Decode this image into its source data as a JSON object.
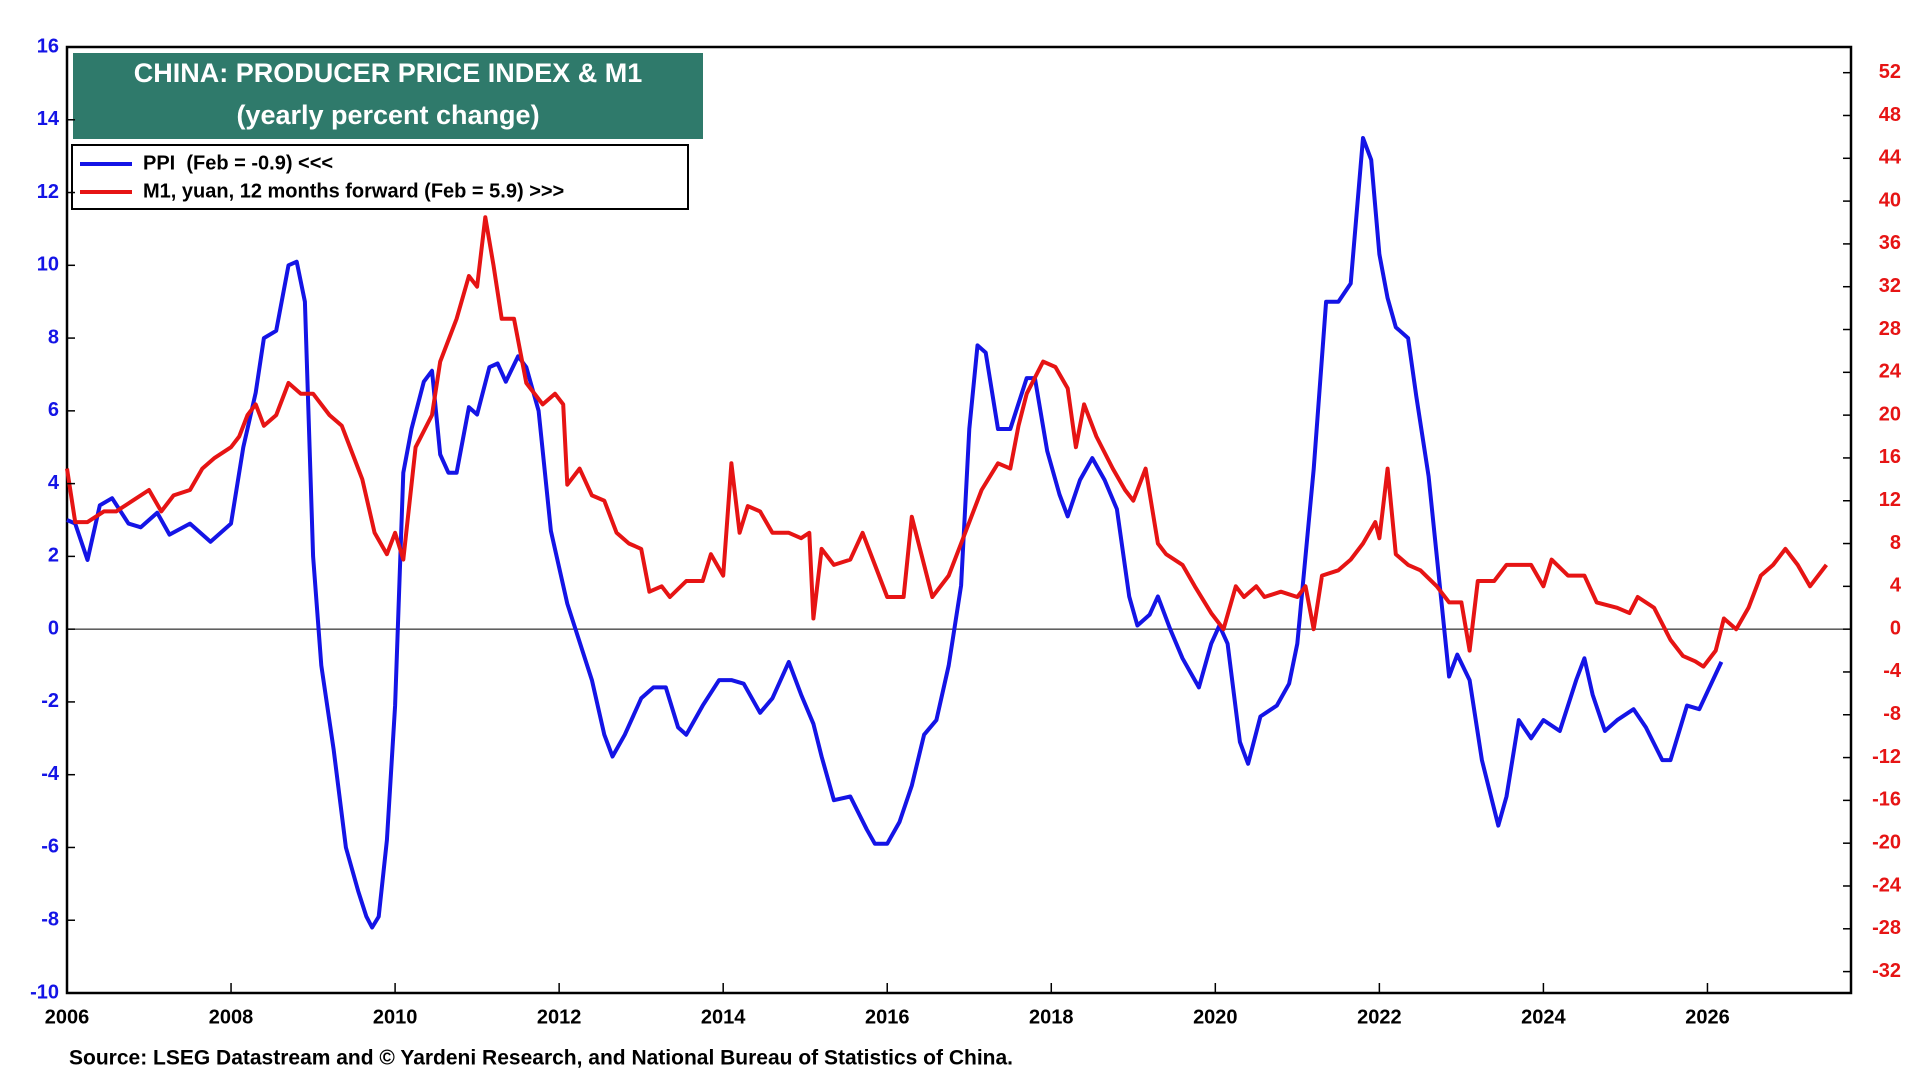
{
  "chart_data": {
    "type": "line",
    "title": "CHINA: PRODUCER PRICE INDEX & M1",
    "subtitle": "(yearly percent change)",
    "source": "Source: LSEG Datastream and © Yardeni Research, and National Bureau of Statistics of China.",
    "xlim": [
      2006,
      2027.75
    ],
    "xticks": [
      2006,
      2008,
      2010,
      2012,
      2014,
      2016,
      2018,
      2020,
      2022,
      2024,
      2026
    ],
    "ylim": [
      -10,
      16
    ],
    "yticks": [
      -10,
      -8,
      -6,
      -4,
      -2,
      0,
      2,
      4,
      6,
      8,
      10,
      12,
      14,
      16
    ],
    "y2lim": [
      -34,
      54.4
    ],
    "y2ticks": [
      -32,
      -28,
      -24,
      -20,
      -16,
      -12,
      -8,
      -4,
      0,
      4,
      8,
      12,
      16,
      20,
      24,
      28,
      32,
      36,
      40,
      44,
      48,
      52
    ],
    "series": [
      {
        "name": "PPI  (Feb = -0.9) <<<",
        "color": "#1414e6",
        "axis": "y",
        "x": [
          2006.0,
          2006.1,
          2006.25,
          2006.4,
          2006.55,
          2006.75,
          2006.9,
          2007.1,
          2007.25,
          2007.5,
          2007.75,
          2008.0,
          2008.15,
          2008.3,
          2008.4,
          2008.55,
          2008.7,
          2008.8,
          2008.9,
          2009.0,
          2009.1,
          2009.25,
          2009.4,
          2009.55,
          2009.65,
          2009.72,
          2009.8,
          2009.9,
          2010.0,
          2010.1,
          2010.2,
          2010.35,
          2010.45,
          2010.55,
          2010.65,
          2010.75,
          2010.9,
          2011.0,
          2011.15,
          2011.25,
          2011.35,
          2011.5,
          2011.6,
          2011.75,
          2011.9,
          2012.0,
          2012.1,
          2012.2,
          2012.4,
          2012.55,
          2012.65,
          2012.8,
          2013.0,
          2013.15,
          2013.3,
          2013.45,
          2013.55,
          2013.75,
          2013.95,
          2014.1,
          2014.25,
          2014.45,
          2014.6,
          2014.8,
          2014.95,
          2015.1,
          2015.2,
          2015.35,
          2015.55,
          2015.75,
          2015.85,
          2016.0,
          2016.15,
          2016.3,
          2016.45,
          2016.6,
          2016.75,
          2016.9,
          2017.0,
          2017.1,
          2017.2,
          2017.35,
          2017.5,
          2017.7,
          2017.8,
          2017.95,
          2018.1,
          2018.2,
          2018.35,
          2018.5,
          2018.65,
          2018.8,
          2018.95,
          2019.05,
          2019.2,
          2019.3,
          2019.45,
          2019.6,
          2019.8,
          2019.95,
          2020.05,
          2020.15,
          2020.3,
          2020.4,
          2020.55,
          2020.75,
          2020.9,
          2021.0,
          2021.2,
          2021.35,
          2021.5,
          2021.65,
          2021.8,
          2021.9,
          2022.0,
          2022.1,
          2022.2,
          2022.35,
          2022.45,
          2022.6,
          2022.75,
          2022.85,
          2022.95,
          2023.1,
          2023.25,
          2023.45,
          2023.55,
          2023.7,
          2023.85,
          2024.0,
          2024.2,
          2024.4,
          2024.5,
          2024.6,
          2024.75,
          2024.9,
          2025.1,
          2025.25,
          2025.45,
          2025.55,
          2025.75,
          2025.9,
          2026.17
        ],
        "values": [
          3.0,
          2.9,
          1.9,
          3.4,
          3.6,
          2.9,
          2.8,
          3.2,
          2.6,
          2.9,
          2.4,
          2.9,
          5.0,
          6.5,
          8.0,
          8.2,
          10.0,
          10.1,
          9.0,
          2.0,
          -1.0,
          -3.3,
          -6.0,
          -7.2,
          -7.9,
          -8.2,
          -7.9,
          -5.8,
          -2.1,
          4.3,
          5.5,
          6.8,
          7.1,
          4.8,
          4.3,
          4.3,
          6.1,
          5.9,
          7.2,
          7.3,
          6.8,
          7.5,
          7.2,
          6.0,
          2.7,
          1.7,
          0.7,
          0.0,
          -1.4,
          -2.9,
          -3.5,
          -2.9,
          -1.9,
          -1.6,
          -1.6,
          -2.7,
          -2.9,
          -2.1,
          -1.4,
          -1.4,
          -1.5,
          -2.3,
          -1.9,
          -0.9,
          -1.8,
          -2.6,
          -3.5,
          -4.7,
          -4.6,
          -5.5,
          -5.9,
          -5.9,
          -5.3,
          -4.3,
          -2.9,
          -2.5,
          -1.0,
          1.2,
          5.5,
          7.8,
          7.6,
          5.5,
          5.5,
          6.9,
          6.9,
          4.9,
          3.7,
          3.1,
          4.1,
          4.7,
          4.1,
          3.3,
          0.9,
          0.1,
          0.4,
          0.9,
          0.0,
          -0.8,
          -1.6,
          -0.4,
          0.1,
          -0.4,
          -3.1,
          -3.7,
          -2.4,
          -2.1,
          -1.5,
          -0.4,
          4.4,
          9.0,
          9.0,
          9.5,
          13.5,
          12.9,
          10.3,
          9.1,
          8.3,
          8.0,
          6.4,
          4.2,
          0.9,
          -1.3,
          -0.7,
          -1.4,
          -3.6,
          -5.4,
          -4.6,
          -2.5,
          -3.0,
          -2.5,
          -2.8,
          -1.4,
          -0.8,
          -1.8,
          -2.8,
          -2.5,
          -2.2,
          -2.7,
          -3.6,
          -3.6,
          -2.1,
          -2.2,
          -0.9
        ]
      },
      {
        "name": "M1, yuan, 12 months forward (Feb = 5.9) >>>",
        "color": "#e61414",
        "axis": "y2",
        "x": [
          2006.0,
          2006.1,
          2006.25,
          2006.45,
          2006.6,
          2006.8,
          2007.0,
          2007.15,
          2007.3,
          2007.5,
          2007.65,
          2007.8,
          2008.0,
          2008.1,
          2008.2,
          2008.3,
          2008.4,
          2008.55,
          2008.7,
          2008.85,
          2009.0,
          2009.2,
          2009.35,
          2009.5,
          2009.6,
          2009.75,
          2009.9,
          2010.0,
          2010.1,
          2010.25,
          2010.45,
          2010.55,
          2010.75,
          2010.9,
          2011.0,
          2011.1,
          2011.2,
          2011.3,
          2011.45,
          2011.6,
          2011.8,
          2011.95,
          2012.05,
          2012.1,
          2012.25,
          2012.4,
          2012.55,
          2012.7,
          2012.85,
          2013.0,
          2013.1,
          2013.25,
          2013.35,
          2013.55,
          2013.75,
          2013.85,
          2014.0,
          2014.1,
          2014.2,
          2014.3,
          2014.45,
          2014.6,
          2014.8,
          2014.95,
          2015.05,
          2015.1,
          2015.2,
          2015.35,
          2015.55,
          2015.7,
          2015.85,
          2016.0,
          2016.2,
          2016.3,
          2016.45,
          2016.55,
          2016.75,
          2016.95,
          2017.15,
          2017.35,
          2017.5,
          2017.6,
          2017.7,
          2017.9,
          2018.05,
          2018.2,
          2018.3,
          2018.4,
          2018.55,
          2018.75,
          2018.9,
          2019.0,
          2019.15,
          2019.3,
          2019.4,
          2019.6,
          2019.75,
          2019.95,
          2020.1,
          2020.25,
          2020.35,
          2020.5,
          2020.6,
          2020.8,
          2021.0,
          2021.1,
          2021.2,
          2021.3,
          2021.5,
          2021.65,
          2021.8,
          2021.95,
          2022.0,
          2022.1,
          2022.2,
          2022.35,
          2022.5,
          2022.7,
          2022.85,
          2023.0,
          2023.1,
          2023.2,
          2023.4,
          2023.55,
          2023.7,
          2023.85,
          2024.0,
          2024.1,
          2024.3,
          2024.5,
          2024.65,
          2024.9,
          2025.05,
          2025.15,
          2025.35,
          2025.55,
          2025.7,
          2025.85,
          2025.95,
          2026.1,
          2026.2,
          2026.35,
          2026.5,
          2026.65,
          2026.8,
          2026.95,
          2027.1,
          2027.25,
          2027.45
        ],
        "values": [
          15,
          10,
          10,
          11,
          11,
          12,
          13,
          11,
          12.5,
          13,
          15,
          16,
          17,
          18,
          20,
          21,
          19,
          20,
          23,
          22,
          22,
          20,
          19,
          16,
          14,
          9,
          7,
          9,
          6.5,
          17,
          20,
          25,
          29,
          33,
          32,
          38.5,
          34,
          29,
          29,
          23,
          21,
          22,
          21,
          13.5,
          15,
          12.5,
          12,
          9,
          8,
          7.5,
          3.5,
          4,
          3,
          4.5,
          4.5,
          7,
          5,
          15.5,
          9,
          11.5,
          11,
          9,
          9,
          8.5,
          9,
          1,
          7.5,
          6,
          6.5,
          9,
          6,
          3,
          3,
          10.5,
          6,
          3,
          5,
          9,
          13,
          15.5,
          15,
          19,
          22,
          25,
          24.5,
          22.5,
          17,
          21,
          18,
          15,
          13,
          12,
          15,
          8,
          7,
          6,
          4,
          1.5,
          0,
          4,
          3,
          4,
          3,
          3.5,
          3,
          4,
          0,
          5,
          5.5,
          6.5,
          8,
          10,
          8.5,
          15,
          7,
          6,
          5.5,
          4,
          2.5,
          2.5,
          -2,
          4.5,
          4.5,
          6,
          6,
          6,
          4,
          6.5,
          5,
          5,
          2.5,
          2,
          1.5,
          3,
          2,
          -1,
          -2.5,
          -3,
          -3.5,
          -2,
          1,
          0,
          2,
          5,
          6,
          7.5,
          6,
          4,
          6
        ]
      }
    ]
  }
}
